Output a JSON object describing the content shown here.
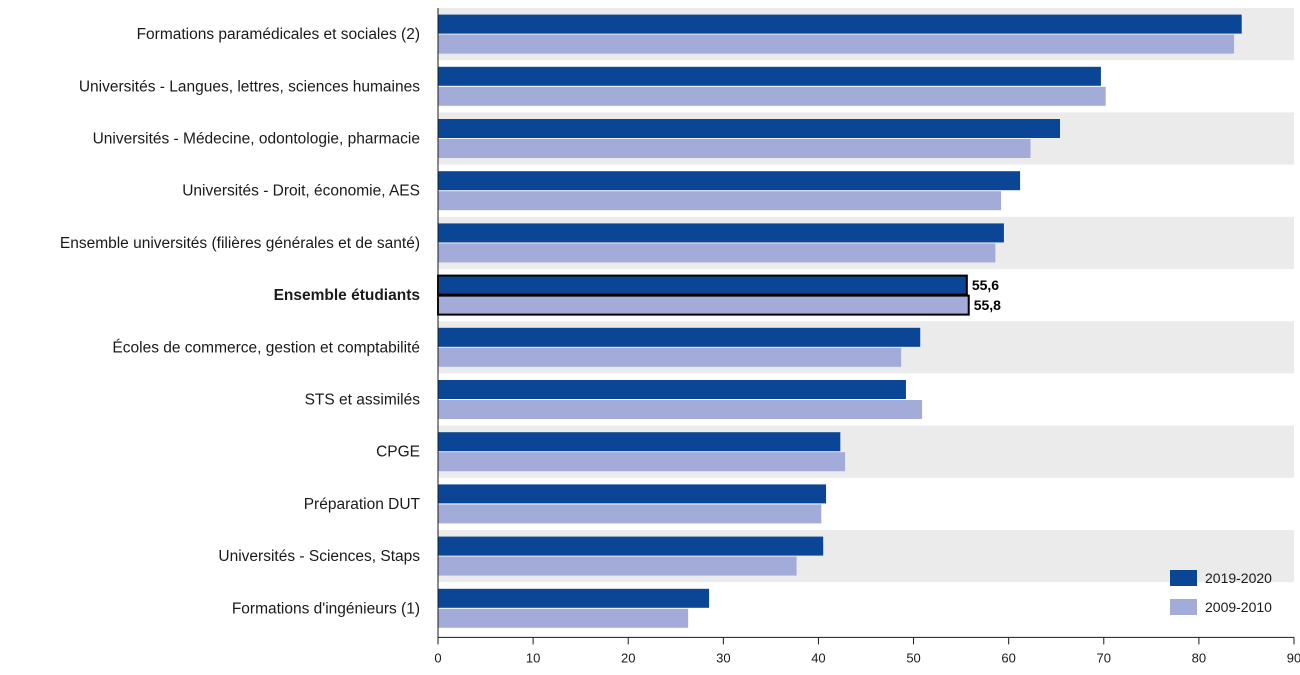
{
  "chart_data": {
    "type": "bar",
    "orientation": "horizontal",
    "categories": [
      "Formations paramédicales et sociales (2)",
      "Universités - Langues, lettres, sciences humaines",
      "Universités - Médecine, odontologie, pharmacie",
      "Universités - Droit, économie, AES",
      "Ensemble universités (filières générales et de santé)",
      "Ensemble étudiants",
      "Écoles de commerce, gestion et comptabilité",
      "STS et assimilés",
      "CPGE",
      "Préparation DUT",
      "Universités - Sciences, Staps",
      "Formations d'ingénieurs (1)"
    ],
    "highlight_category": "Ensemble étudiants",
    "series": [
      {
        "name": "2019-2020",
        "color": "#0b4595",
        "values": [
          84.5,
          69.7,
          65.4,
          61.2,
          59.5,
          55.6,
          50.7,
          49.2,
          42.3,
          40.8,
          40.5,
          28.5
        ]
      },
      {
        "name": "2009-2010",
        "color": "#a3acd9",
        "values": [
          83.7,
          70.2,
          62.3,
          59.2,
          58.6,
          55.8,
          48.7,
          50.9,
          42.8,
          40.3,
          37.7,
          26.3
        ]
      }
    ],
    "data_labels": [
      {
        "category": "Ensemble étudiants",
        "series": "2019-2020",
        "text": "55,6"
      },
      {
        "category": "Ensemble étudiants",
        "series": "2009-2010",
        "text": "55,8"
      }
    ],
    "xlim": [
      0,
      90
    ],
    "xticks": [
      0,
      10,
      20,
      30,
      40,
      50,
      60,
      70,
      80,
      90
    ],
    "xlabel": "",
    "ylabel": "",
    "title": "",
    "grid": false,
    "row_banding": true,
    "band_color": "#ebebeb",
    "legend_position": "bottom-right"
  }
}
